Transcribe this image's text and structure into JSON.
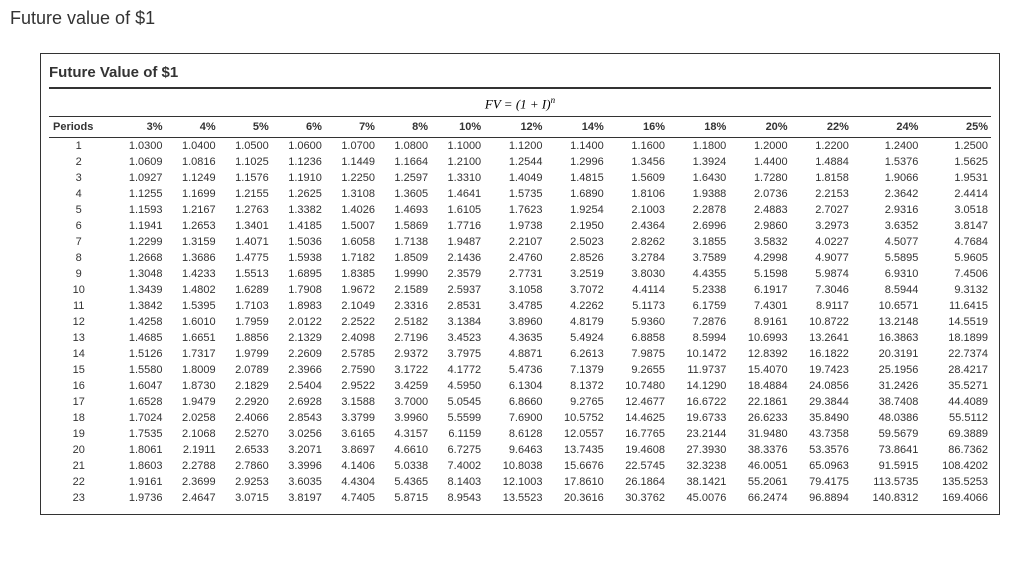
{
  "heading": "Future value of $1",
  "table": {
    "title": "Future Value of $1",
    "formula_html": "FV = (1 + I)<sup>n</sup>",
    "periods_label": "Periods",
    "rates": [
      "3%",
      "4%",
      "5%",
      "6%",
      "7%",
      "8%",
      "10%",
      "12%",
      "14%",
      "16%",
      "18%",
      "20%",
      "22%",
      "24%",
      "25%"
    ],
    "rows": [
      {
        "period": 1,
        "values": [
          "1.0300",
          "1.0400",
          "1.0500",
          "1.0600",
          "1.0700",
          "1.0800",
          "1.1000",
          "1.1200",
          "1.1400",
          "1.1600",
          "1.1800",
          "1.2000",
          "1.2200",
          "1.2400",
          "1.2500"
        ]
      },
      {
        "period": 2,
        "values": [
          "1.0609",
          "1.0816",
          "1.1025",
          "1.1236",
          "1.1449",
          "1.1664",
          "1.2100",
          "1.2544",
          "1.2996",
          "1.3456",
          "1.3924",
          "1.4400",
          "1.4884",
          "1.5376",
          "1.5625"
        ]
      },
      {
        "period": 3,
        "values": [
          "1.0927",
          "1.1249",
          "1.1576",
          "1.1910",
          "1.2250",
          "1.2597",
          "1.3310",
          "1.4049",
          "1.4815",
          "1.5609",
          "1.6430",
          "1.7280",
          "1.8158",
          "1.9066",
          "1.9531"
        ]
      },
      {
        "period": 4,
        "values": [
          "1.1255",
          "1.1699",
          "1.2155",
          "1.2625",
          "1.3108",
          "1.3605",
          "1.4641",
          "1.5735",
          "1.6890",
          "1.8106",
          "1.9388",
          "2.0736",
          "2.2153",
          "2.3642",
          "2.4414"
        ]
      },
      {
        "period": 5,
        "values": [
          "1.1593",
          "1.2167",
          "1.2763",
          "1.3382",
          "1.4026",
          "1.4693",
          "1.6105",
          "1.7623",
          "1.9254",
          "2.1003",
          "2.2878",
          "2.4883",
          "2.7027",
          "2.9316",
          "3.0518"
        ]
      },
      {
        "period": 6,
        "values": [
          "1.1941",
          "1.2653",
          "1.3401",
          "1.4185",
          "1.5007",
          "1.5869",
          "1.7716",
          "1.9738",
          "2.1950",
          "2.4364",
          "2.6996",
          "2.9860",
          "3.2973",
          "3.6352",
          "3.8147"
        ]
      },
      {
        "period": 7,
        "values": [
          "1.2299",
          "1.3159",
          "1.4071",
          "1.5036",
          "1.6058",
          "1.7138",
          "1.9487",
          "2.2107",
          "2.5023",
          "2.8262",
          "3.1855",
          "3.5832",
          "4.0227",
          "4.5077",
          "4.7684"
        ]
      },
      {
        "period": 8,
        "values": [
          "1.2668",
          "1.3686",
          "1.4775",
          "1.5938",
          "1.7182",
          "1.8509",
          "2.1436",
          "2.4760",
          "2.8526",
          "3.2784",
          "3.7589",
          "4.2998",
          "4.9077",
          "5.5895",
          "5.9605"
        ]
      },
      {
        "period": 9,
        "values": [
          "1.3048",
          "1.4233",
          "1.5513",
          "1.6895",
          "1.8385",
          "1.9990",
          "2.3579",
          "2.7731",
          "3.2519",
          "3.8030",
          "4.4355",
          "5.1598",
          "5.9874",
          "6.9310",
          "7.4506"
        ]
      },
      {
        "period": 10,
        "values": [
          "1.3439",
          "1.4802",
          "1.6289",
          "1.7908",
          "1.9672",
          "2.1589",
          "2.5937",
          "3.1058",
          "3.7072",
          "4.4114",
          "5.2338",
          "6.1917",
          "7.3046",
          "8.5944",
          "9.3132"
        ]
      },
      {
        "period": 11,
        "values": [
          "1.3842",
          "1.5395",
          "1.7103",
          "1.8983",
          "2.1049",
          "2.3316",
          "2.8531",
          "3.4785",
          "4.2262",
          "5.1173",
          "6.1759",
          "7.4301",
          "8.9117",
          "10.6571",
          "11.6415"
        ]
      },
      {
        "period": 12,
        "values": [
          "1.4258",
          "1.6010",
          "1.7959",
          "2.0122",
          "2.2522",
          "2.5182",
          "3.1384",
          "3.8960",
          "4.8179",
          "5.9360",
          "7.2876",
          "8.9161",
          "10.8722",
          "13.2148",
          "14.5519"
        ]
      },
      {
        "period": 13,
        "values": [
          "1.4685",
          "1.6651",
          "1.8856",
          "2.1329",
          "2.4098",
          "2.7196",
          "3.4523",
          "4.3635",
          "5.4924",
          "6.8858",
          "8.5994",
          "10.6993",
          "13.2641",
          "16.3863",
          "18.1899"
        ]
      },
      {
        "period": 14,
        "values": [
          "1.5126",
          "1.7317",
          "1.9799",
          "2.2609",
          "2.5785",
          "2.9372",
          "3.7975",
          "4.8871",
          "6.2613",
          "7.9875",
          "10.1472",
          "12.8392",
          "16.1822",
          "20.3191",
          "22.7374"
        ]
      },
      {
        "period": 15,
        "values": [
          "1.5580",
          "1.8009",
          "2.0789",
          "2.3966",
          "2.7590",
          "3.1722",
          "4.1772",
          "5.4736",
          "7.1379",
          "9.2655",
          "11.9737",
          "15.4070",
          "19.7423",
          "25.1956",
          "28.4217"
        ]
      },
      {
        "period": 16,
        "values": [
          "1.6047",
          "1.8730",
          "2.1829",
          "2.5404",
          "2.9522",
          "3.4259",
          "4.5950",
          "6.1304",
          "8.1372",
          "10.7480",
          "14.1290",
          "18.4884",
          "24.0856",
          "31.2426",
          "35.5271"
        ]
      },
      {
        "period": 17,
        "values": [
          "1.6528",
          "1.9479",
          "2.2920",
          "2.6928",
          "3.1588",
          "3.7000",
          "5.0545",
          "6.8660",
          "9.2765",
          "12.4677",
          "16.6722",
          "22.1861",
          "29.3844",
          "38.7408",
          "44.4089"
        ]
      },
      {
        "period": 18,
        "values": [
          "1.7024",
          "2.0258",
          "2.4066",
          "2.8543",
          "3.3799",
          "3.9960",
          "5.5599",
          "7.6900",
          "10.5752",
          "14.4625",
          "19.6733",
          "26.6233",
          "35.8490",
          "48.0386",
          "55.5112"
        ]
      },
      {
        "period": 19,
        "values": [
          "1.7535",
          "2.1068",
          "2.5270",
          "3.0256",
          "3.6165",
          "4.3157",
          "6.1159",
          "8.6128",
          "12.0557",
          "16.7765",
          "23.2144",
          "31.9480",
          "43.7358",
          "59.5679",
          "69.3889"
        ]
      },
      {
        "period": 20,
        "values": [
          "1.8061",
          "2.1911",
          "2.6533",
          "3.2071",
          "3.8697",
          "4.6610",
          "6.7275",
          "9.6463",
          "13.7435",
          "19.4608",
          "27.3930",
          "38.3376",
          "53.3576",
          "73.8641",
          "86.7362"
        ]
      },
      {
        "period": 21,
        "values": [
          "1.8603",
          "2.2788",
          "2.7860",
          "3.3996",
          "4.1406",
          "5.0338",
          "7.4002",
          "10.8038",
          "15.6676",
          "22.5745",
          "32.3238",
          "46.0051",
          "65.0963",
          "91.5915",
          "108.4202"
        ]
      },
      {
        "period": 22,
        "values": [
          "1.9161",
          "2.3699",
          "2.9253",
          "3.6035",
          "4.4304",
          "5.4365",
          "8.1403",
          "12.1003",
          "17.8610",
          "26.1864",
          "38.1421",
          "55.2061",
          "79.4175",
          "113.5735",
          "135.5253"
        ]
      },
      {
        "period": 23,
        "values": [
          "1.9736",
          "2.4647",
          "3.0715",
          "3.8197",
          "4.7405",
          "5.8715",
          "8.9543",
          "13.5523",
          "20.3616",
          "30.3762",
          "45.0076",
          "66.2474",
          "96.8894",
          "140.8312",
          "169.4066"
        ]
      }
    ]
  }
}
